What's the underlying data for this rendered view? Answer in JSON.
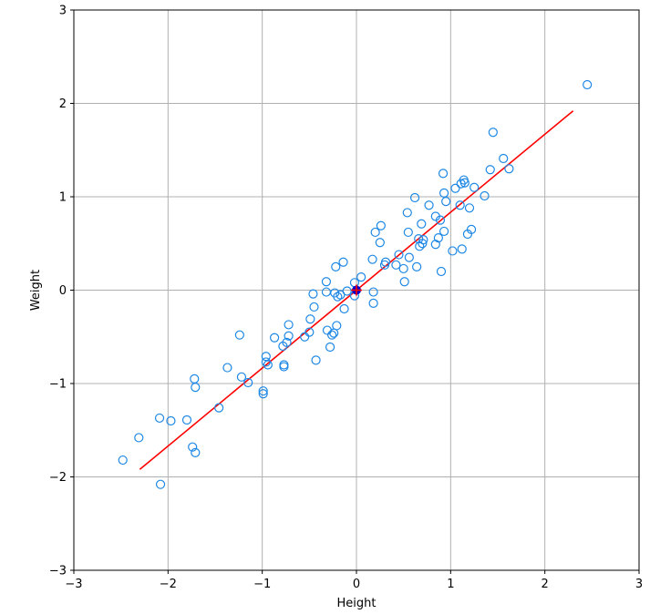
{
  "chart_data": {
    "type": "scatter",
    "title": "",
    "xlabel": "Height",
    "ylabel": "Weight",
    "xlim": [
      -3,
      3
    ],
    "ylim": [
      -3,
      3
    ],
    "xticks": [
      -3,
      -2,
      -1,
      0,
      1,
      2,
      3
    ],
    "yticks": [
      -3,
      -2,
      -1,
      0,
      1,
      2,
      3
    ],
    "xtick_labels": [
      "−3",
      "−2",
      "−1",
      "0",
      "1",
      "2",
      "3"
    ],
    "ytick_labels": [
      "−3",
      "−2",
      "−1",
      "0",
      "1",
      "2",
      "3"
    ],
    "grid": true,
    "colors": {
      "points": "#1e88e5",
      "fit_line": "#ff0000",
      "mean_marker": "#0000cc",
      "mean_marker_cross": "#ff0000",
      "grid": "#b0b0b0",
      "axes": "#000000"
    },
    "series": [
      {
        "type": "scatter",
        "marker": "open-circle",
        "points": [
          [
            -2.48,
            -1.82
          ],
          [
            -2.31,
            -1.58
          ],
          [
            -2.09,
            -1.37
          ],
          [
            -2.08,
            -2.08
          ],
          [
            -1.97,
            -1.4
          ],
          [
            -1.8,
            -1.39
          ],
          [
            -1.74,
            -1.68
          ],
          [
            -1.72,
            -0.95
          ],
          [
            -1.71,
            -1.04
          ],
          [
            -1.71,
            -1.74
          ],
          [
            -1.46,
            -1.26
          ],
          [
            -1.37,
            -0.83
          ],
          [
            -1.24,
            -0.48
          ],
          [
            -1.22,
            -0.93
          ],
          [
            -1.15,
            -0.99
          ],
          [
            -0.99,
            -1.08
          ],
          [
            -0.99,
            -1.11
          ],
          [
            -0.96,
            -0.71
          ],
          [
            -0.96,
            -0.77
          ],
          [
            -0.94,
            -0.8
          ],
          [
            -0.87,
            -0.51
          ],
          [
            -0.78,
            -0.6
          ],
          [
            -0.77,
            -0.8
          ],
          [
            -0.77,
            -0.82
          ],
          [
            -0.74,
            -0.56
          ],
          [
            -0.72,
            -0.37
          ],
          [
            -0.72,
            -0.49
          ],
          [
            -0.55,
            -0.5
          ],
          [
            -0.5,
            -0.45
          ],
          [
            -0.49,
            -0.31
          ],
          [
            -0.46,
            -0.04
          ],
          [
            -0.45,
            -0.18
          ],
          [
            -0.43,
            -0.75
          ],
          [
            -0.32,
            -0.02
          ],
          [
            -0.32,
            0.09
          ],
          [
            -0.31,
            -0.43
          ],
          [
            -0.28,
            -0.61
          ],
          [
            -0.26,
            -0.48
          ],
          [
            -0.24,
            -0.46
          ],
          [
            -0.23,
            -0.03
          ],
          [
            -0.22,
            0.25
          ],
          [
            -0.21,
            -0.38
          ],
          [
            -0.2,
            -0.07
          ],
          [
            -0.17,
            -0.05
          ],
          [
            -0.14,
            0.3
          ],
          [
            -0.13,
            -0.2
          ],
          [
            -0.1,
            -0.01
          ],
          [
            -0.02,
            0.08
          ],
          [
            -0.02,
            -0.06
          ],
          [
            0.05,
            0.14
          ],
          [
            0.17,
            0.33
          ],
          [
            0.18,
            -0.02
          ],
          [
            0.18,
            -0.14
          ],
          [
            0.2,
            0.62
          ],
          [
            0.25,
            0.51
          ],
          [
            0.26,
            0.69
          ],
          [
            0.3,
            0.27
          ],
          [
            0.31,
            0.3
          ],
          [
            0.42,
            0.27
          ],
          [
            0.45,
            0.38
          ],
          [
            0.5,
            0.23
          ],
          [
            0.51,
            0.09
          ],
          [
            0.54,
            0.83
          ],
          [
            0.55,
            0.62
          ],
          [
            0.56,
            0.35
          ],
          [
            0.62,
            0.99
          ],
          [
            0.64,
            0.25
          ],
          [
            0.66,
            0.55
          ],
          [
            0.67,
            0.47
          ],
          [
            0.69,
            0.71
          ],
          [
            0.7,
            0.5
          ],
          [
            0.71,
            0.54
          ],
          [
            0.77,
            0.91
          ],
          [
            0.84,
            0.79
          ],
          [
            0.84,
            0.49
          ],
          [
            0.87,
            0.56
          ],
          [
            0.89,
            0.75
          ],
          [
            0.9,
            0.2
          ],
          [
            0.92,
            1.25
          ],
          [
            0.93,
            1.04
          ],
          [
            0.93,
            0.63
          ],
          [
            0.95,
            0.95
          ],
          [
            1.02,
            0.42
          ],
          [
            1.05,
            1.09
          ],
          [
            1.1,
            0.91
          ],
          [
            1.11,
            1.14
          ],
          [
            1.12,
            0.44
          ],
          [
            1.14,
            1.18
          ],
          [
            1.15,
            1.15
          ],
          [
            1.18,
            0.6
          ],
          [
            1.2,
            0.88
          ],
          [
            1.22,
            0.65
          ],
          [
            1.25,
            1.1
          ],
          [
            1.36,
            1.01
          ],
          [
            1.42,
            1.29
          ],
          [
            1.45,
            1.69
          ],
          [
            1.56,
            1.41
          ],
          [
            1.62,
            1.3
          ],
          [
            2.45,
            2.2
          ]
        ]
      },
      {
        "type": "line",
        "points": [
          [
            -2.3,
            -1.92
          ],
          [
            2.3,
            1.92
          ]
        ]
      },
      {
        "type": "marker",
        "marker": "filled-circle-plus",
        "points": [
          [
            0.0,
            0.0
          ]
        ]
      }
    ]
  }
}
